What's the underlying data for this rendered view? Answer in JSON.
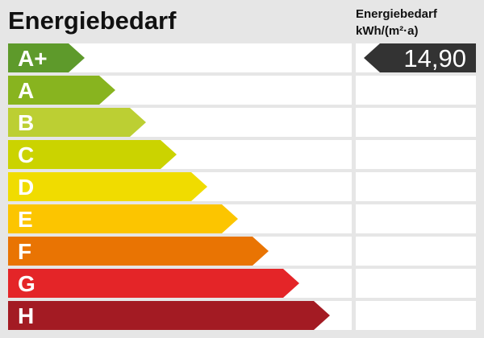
{
  "title": "Energiebedarf",
  "unit_line1": "Energiebedarf",
  "unit_line2": "kWh/(m²·a)",
  "value": "14,90",
  "value_class": "A+",
  "marker_color": "#333333",
  "classes": [
    {
      "label": "A+",
      "color": "#5e9a2b"
    },
    {
      "label": "A",
      "color": "#88b41f"
    },
    {
      "label": "B",
      "color": "#bccf33"
    },
    {
      "label": "C",
      "color": "#cbd300"
    },
    {
      "label": "D",
      "color": "#f0dc00"
    },
    {
      "label": "E",
      "color": "#fcc500"
    },
    {
      "label": "F",
      "color": "#e97403"
    },
    {
      "label": "G",
      "color": "#e42528"
    },
    {
      "label": "H",
      "color": "#a31b23"
    }
  ]
}
